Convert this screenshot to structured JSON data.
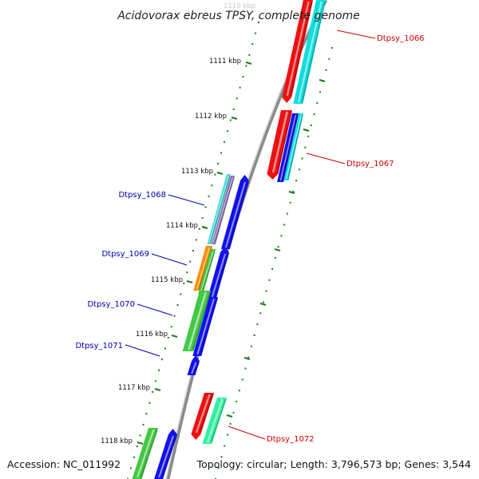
{
  "title": "Acidovorax ebreus TPSY, complete genome",
  "footer": {
    "accession": "Accession: NC_011992",
    "summary": "Topology: circular; Length: 3,796,573 bp; Genes: 3,544"
  },
  "colors": {
    "backbone": "#8c8c8c",
    "tick": "#1e7a1e",
    "label_forward": "#0000b0",
    "label_reverse": "#cc0000",
    "red": "#ee1111",
    "cyan": "#11dddd",
    "blue": "#1111ee",
    "light_cyan": "#44dddd",
    "purple": "#8c70b8",
    "orange": "#ff8c00",
    "green": "#44c844",
    "seafoam": "#33f0a0"
  },
  "scale": {
    "unit": "kbp",
    "top_partial": "1110 kbp",
    "ticks": [
      "1111 kbp",
      "1112 kbp",
      "1113 kbp",
      "1114 kbp",
      "1115 kbp",
      "1116 kbp",
      "1117 kbp",
      "1118 kbp"
    ]
  },
  "genes": [
    {
      "label": "Dtpsy_1066",
      "strand": "reverse"
    },
    {
      "label": "Dtpsy_1067",
      "strand": "reverse"
    },
    {
      "label": "Dtpsy_1068",
      "strand": "forward"
    },
    {
      "label": "Dtpsy_1069",
      "strand": "forward"
    },
    {
      "label": "Dtpsy_1070",
      "strand": "forward"
    },
    {
      "label": "Dtpsy_1071",
      "strand": "forward"
    },
    {
      "label": "Dtpsy_1072",
      "strand": "reverse"
    }
  ]
}
